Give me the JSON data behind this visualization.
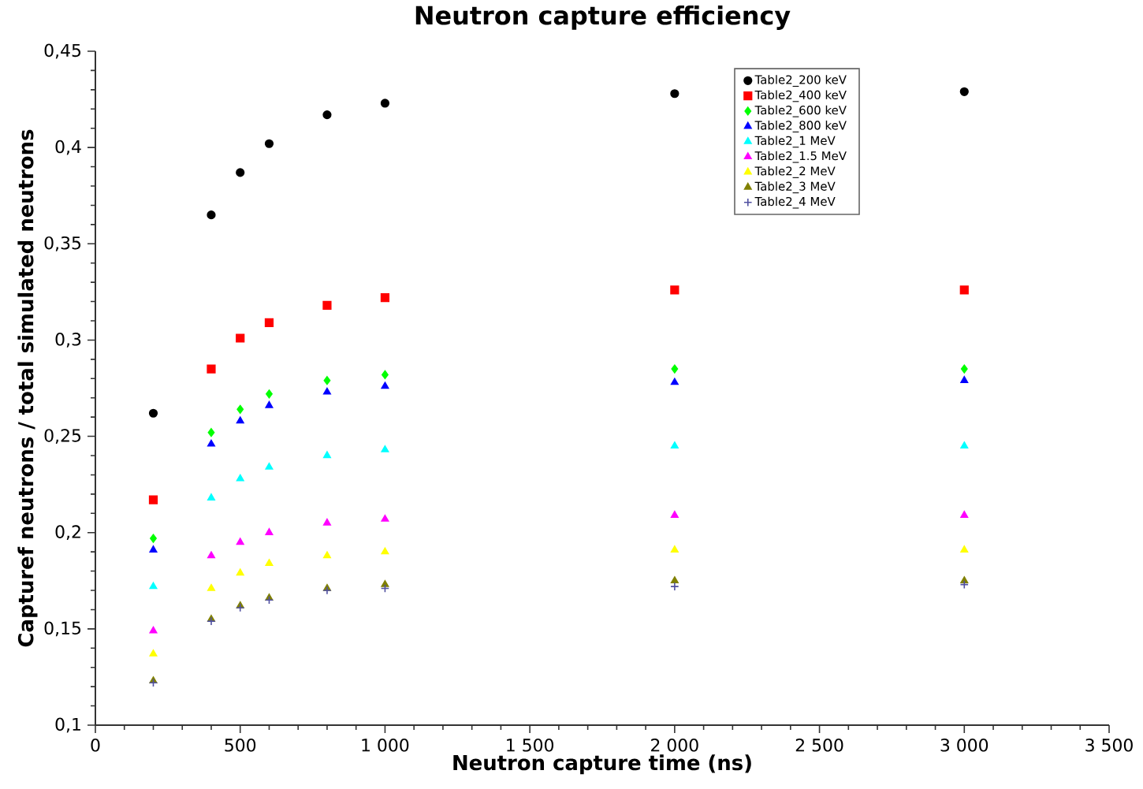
{
  "chart_data": {
    "type": "scatter",
    "title": "Neutron capture efficiency",
    "xlabel": "Neutron capture time (ns)",
    "ylabel": "Capturef neutrons / total simulated neutrons",
    "x": [
      200,
      400,
      500,
      600,
      800,
      1000,
      2000,
      3000
    ],
    "xlim": [
      0,
      3500
    ],
    "ylim": [
      0.1,
      0.45
    ],
    "xticks": [
      0,
      {
        "value": 500,
        "label": "500"
      },
      {
        "value": 1000,
        "label": "1 000"
      },
      {
        "value": 1500,
        "label": "1 500"
      },
      {
        "value": 2000,
        "label": "2 000"
      },
      {
        "value": 2500,
        "label": "2 500"
      },
      {
        "value": 3000,
        "label": "3 000"
      },
      {
        "value": 3500,
        "label": "3 500"
      }
    ],
    "yticks": [
      {
        "value": 0.1,
        "label": "0,1"
      },
      {
        "value": 0.15,
        "label": "0,15"
      },
      {
        "value": 0.2,
        "label": "0,2"
      },
      {
        "value": 0.25,
        "label": "0,25"
      },
      {
        "value": 0.3,
        "label": "0,3"
      },
      {
        "value": 0.35,
        "label": "0,35"
      },
      {
        "value": 0.4,
        "label": "0,4"
      },
      {
        "value": 0.45,
        "label": "0,45"
      }
    ],
    "grid": false,
    "legend": "top right",
    "series": [
      {
        "name": "Table2_200 keV",
        "color": "#000000",
        "marker": "circle",
        "values": [
          0.262,
          0.365,
          0.387,
          0.402,
          0.417,
          0.423,
          0.428,
          0.429
        ]
      },
      {
        "name": "Table2_400 keV",
        "color": "#ff0000",
        "marker": "square",
        "values": [
          0.217,
          0.285,
          0.301,
          0.309,
          0.318,
          0.322,
          0.326,
          0.326
        ]
      },
      {
        "name": "Table2_600 keV",
        "color": "#00ff00",
        "marker": "diamond",
        "values": [
          0.197,
          0.252,
          0.264,
          0.272,
          0.279,
          0.282,
          0.285,
          0.285
        ]
      },
      {
        "name": "Table2_800 keV",
        "color": "#0000ff",
        "marker": "triangle",
        "values": [
          0.191,
          0.246,
          0.258,
          0.266,
          0.273,
          0.276,
          0.278,
          0.279
        ]
      },
      {
        "name": "Table2_1 MeV",
        "color": "#00ffff",
        "marker": "triangle",
        "values": [
          0.172,
          0.218,
          0.228,
          0.234,
          0.24,
          0.243,
          0.245,
          0.245
        ]
      },
      {
        "name": "Table2_1.5 MeV",
        "color": "#ff00ff",
        "marker": "triangle",
        "values": [
          0.149,
          0.188,
          0.195,
          0.2,
          0.205,
          0.207,
          0.209,
          0.209
        ]
      },
      {
        "name": "Table2_2 MeV",
        "color": "#ffff00",
        "marker": "triangle",
        "values": [
          0.137,
          0.171,
          0.179,
          0.184,
          0.188,
          0.19,
          0.191,
          0.191
        ]
      },
      {
        "name": "Table2_3 MeV",
        "color": "#808000",
        "marker": "triangle",
        "values": [
          0.123,
          0.155,
          0.162,
          0.166,
          0.171,
          0.173,
          0.175,
          0.175
        ]
      },
      {
        "name": "Table2_4 MeV",
        "color": "#5050a0",
        "marker": "cross",
        "values": [
          0.122,
          0.154,
          0.161,
          0.165,
          0.17,
          0.171,
          0.172,
          0.173
        ]
      }
    ]
  }
}
